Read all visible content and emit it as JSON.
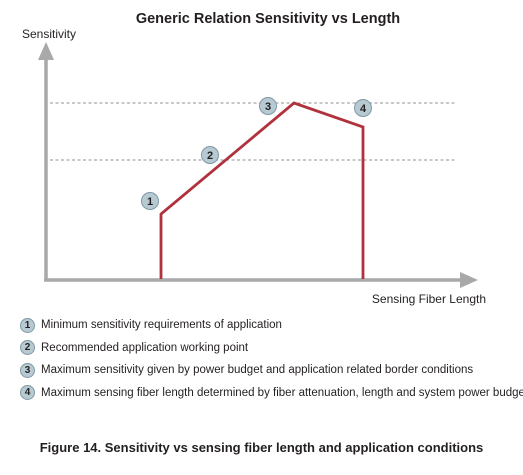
{
  "title": "Generic Relation Sensitivity vs Length",
  "y_axis_label": "Sensitivity",
  "x_axis_label": "Sensing Fiber Length",
  "colors": {
    "axis": "#a8a9ab",
    "curve": "#b0323c",
    "badge_fill": "#b7cad2",
    "badge_stroke": "#7f98a4",
    "dashed": "#6d6e71"
  },
  "points": [
    {
      "num": "1"
    },
    {
      "num": "2"
    },
    {
      "num": "3"
    },
    {
      "num": "4"
    }
  ],
  "legend": [
    {
      "num": "1",
      "text": "Minimum sensitivity requirements of application"
    },
    {
      "num": "2",
      "text": "Recommended application working point"
    },
    {
      "num": "3",
      "text": "Maximum sensitivity given by power budget and application related border conditions"
    },
    {
      "num": "4",
      "text": "Maximum sensing fiber length determined by fiber attenuation, length and system power budget"
    }
  ],
  "caption": "Figure 14. Sensitivity vs sensing fiber length and application conditions"
}
